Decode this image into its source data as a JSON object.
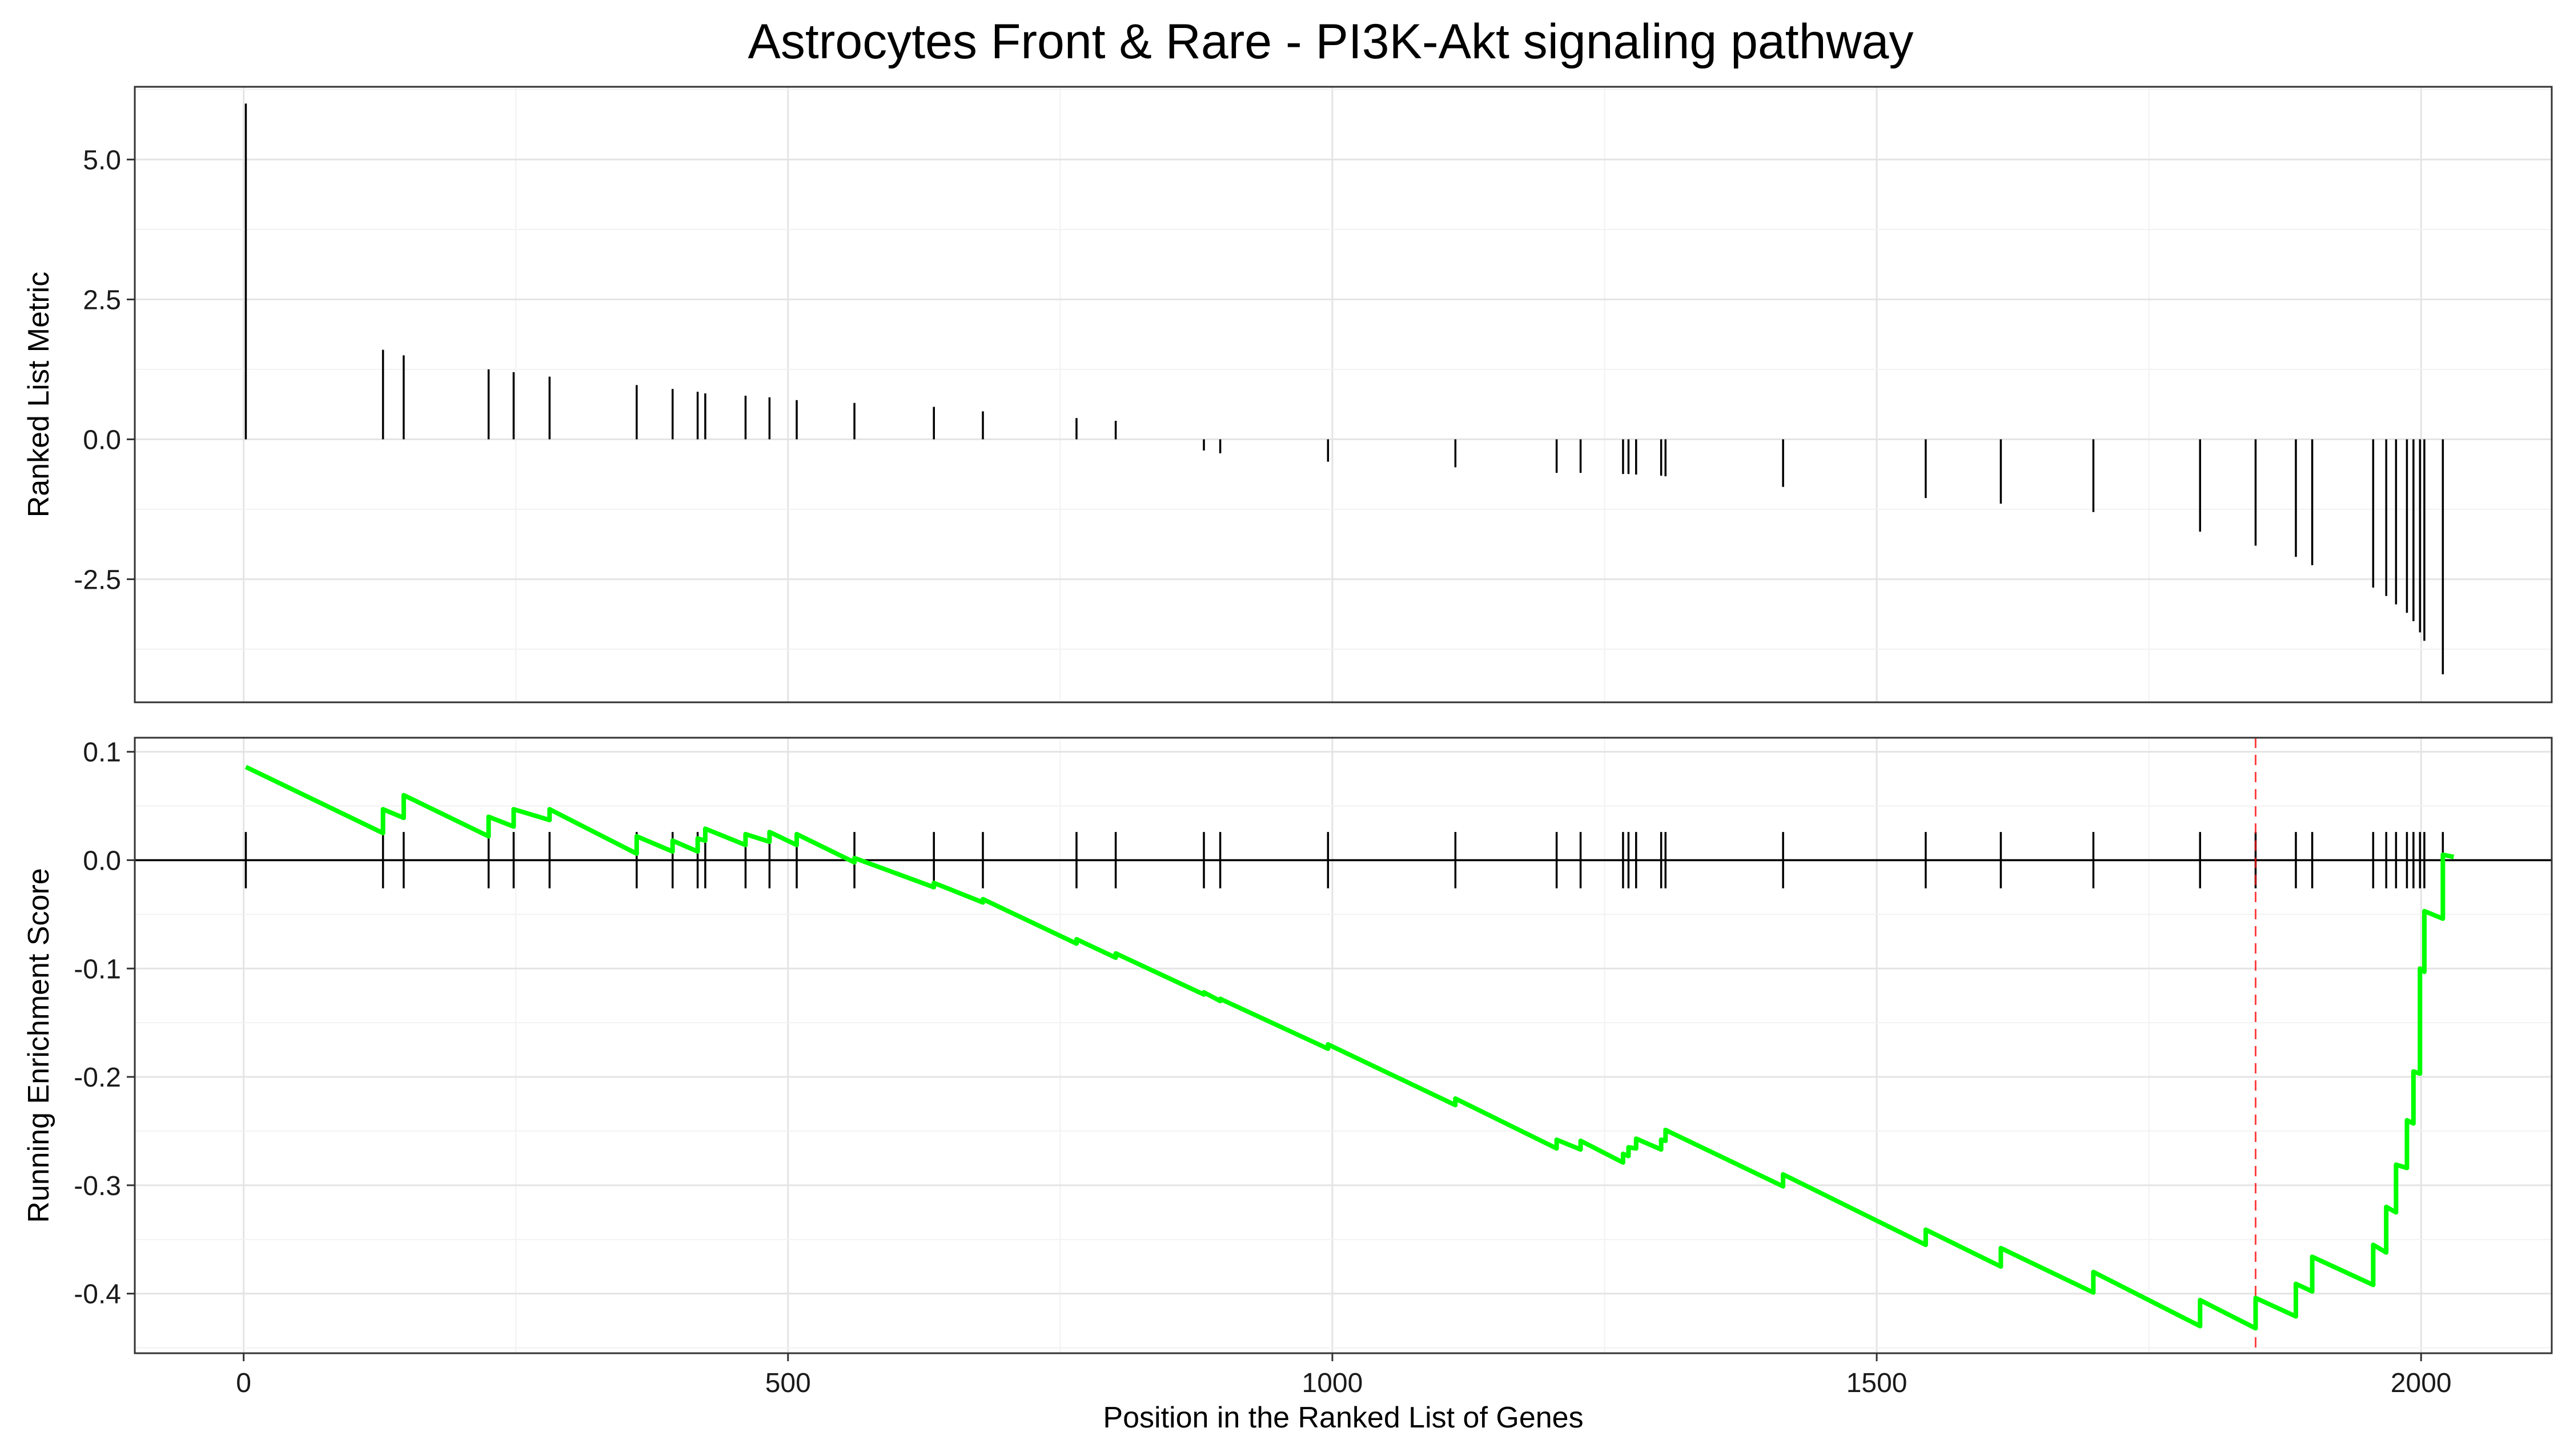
{
  "chart_data": {
    "type": "line",
    "title": "Astrocytes Front & Rare - PI3K-Akt signaling pathway",
    "xlabel": "Position in the Ranked List of Genes",
    "xlim": [
      -100,
      2120
    ],
    "x_ticks": [
      0,
      500,
      1000,
      1500,
      2000
    ],
    "x_tick_labels": [
      "0",
      "500",
      "1000",
      "1500",
      "2000"
    ],
    "panels": [
      {
        "name": "ranked-metric",
        "type": "bar",
        "ylabel": "Ranked List Metric",
        "ylim": [
          -4.7,
          6.3
        ],
        "y_ticks": [
          5.0,
          2.5,
          0.0,
          -2.5
        ],
        "y_tick_labels": [
          "5.0",
          "2.5",
          "0.0",
          "-2.5"
        ],
        "grid": true,
        "bars": [
          {
            "x": 2,
            "value": 6.0
          },
          {
            "x": 128,
            "value": 1.6
          },
          {
            "x": 147,
            "value": 1.5
          },
          {
            "x": 225,
            "value": 1.25
          },
          {
            "x": 248,
            "value": 1.2
          },
          {
            "x": 281,
            "value": 1.12
          },
          {
            "x": 361,
            "value": 0.97
          },
          {
            "x": 394,
            "value": 0.9
          },
          {
            "x": 417,
            "value": 0.85
          },
          {
            "x": 424,
            "value": 0.82
          },
          {
            "x": 461,
            "value": 0.78
          },
          {
            "x": 483,
            "value": 0.75
          },
          {
            "x": 508,
            "value": 0.7
          },
          {
            "x": 561,
            "value": 0.65
          },
          {
            "x": 634,
            "value": 0.58
          },
          {
            "x": 679,
            "value": 0.5
          },
          {
            "x": 765,
            "value": 0.38
          },
          {
            "x": 801,
            "value": 0.33
          },
          {
            "x": 882,
            "value": -0.2
          },
          {
            "x": 897,
            "value": -0.25
          },
          {
            "x": 996,
            "value": -0.4
          },
          {
            "x": 1113,
            "value": -0.5
          },
          {
            "x": 1206,
            "value": -0.6
          },
          {
            "x": 1228,
            "value": -0.6
          },
          {
            "x": 1267,
            "value": -0.62
          },
          {
            "x": 1272,
            "value": -0.62
          },
          {
            "x": 1279,
            "value": -0.63
          },
          {
            "x": 1302,
            "value": -0.65
          },
          {
            "x": 1306,
            "value": -0.66
          },
          {
            "x": 1414,
            "value": -0.85
          },
          {
            "x": 1545,
            "value": -1.05
          },
          {
            "x": 1614,
            "value": -1.15
          },
          {
            "x": 1699,
            "value": -1.3
          },
          {
            "x": 1797,
            "value": -1.65
          },
          {
            "x": 1848,
            "value": -1.9
          },
          {
            "x": 1885,
            "value": -2.1
          },
          {
            "x": 1900,
            "value": -2.25
          },
          {
            "x": 1956,
            "value": -2.65
          },
          {
            "x": 1968,
            "value": -2.8
          },
          {
            "x": 1977,
            "value": -2.95
          },
          {
            "x": 1987,
            "value": -3.1
          },
          {
            "x": 1993,
            "value": -3.25
          },
          {
            "x": 1999,
            "value": -3.45
          },
          {
            "x": 2003,
            "value": -3.6
          },
          {
            "x": 2020,
            "value": -4.2
          }
        ]
      },
      {
        "name": "running-enrichment-score",
        "type": "line",
        "ylabel": "Running Enrichment Score",
        "ylim": [
          -0.455,
          0.113
        ],
        "y_ticks": [
          0.1,
          0.0,
          -0.1,
          -0.2,
          -0.3,
          -0.4
        ],
        "y_tick_labels": [
          "0.1",
          "0.0",
          "-0.1",
          "-0.2",
          "-0.3",
          "-0.4"
        ],
        "grid": true,
        "line_color": "#00ff00",
        "marker_line_color": "#ff0000",
        "max_deviation_x": 1848,
        "hits": [
          2,
          128,
          147,
          225,
          248,
          281,
          361,
          394,
          417,
          424,
          461,
          483,
          508,
          561,
          634,
          679,
          765,
          801,
          882,
          897,
          996,
          1113,
          1206,
          1228,
          1267,
          1272,
          1279,
          1302,
          1306,
          1414,
          1545,
          1614,
          1699,
          1797,
          1848,
          1885,
          1900,
          1956,
          1968,
          1977,
          1987,
          1993,
          1999,
          2003,
          2020
        ],
        "series": [
          {
            "name": "Running Enrichment Score",
            "points": [
              [
                2,
                0.086
              ],
              [
                128,
                0.025
              ],
              [
                128,
                0.047
              ],
              [
                147,
                0.039
              ],
              [
                147,
                0.06
              ],
              [
                225,
                0.022
              ],
              [
                225,
                0.04
              ],
              [
                248,
                0.031
              ],
              [
                248,
                0.047
              ],
              [
                281,
                0.037
              ],
              [
                281,
                0.047
              ],
              [
                361,
                0.006
              ],
              [
                361,
                0.022
              ],
              [
                394,
                0.008
              ],
              [
                394,
                0.018
              ],
              [
                417,
                0.008
              ],
              [
                417,
                0.02
              ],
              [
                424,
                0.018
              ],
              [
                424,
                0.029
              ],
              [
                461,
                0.014
              ],
              [
                461,
                0.024
              ],
              [
                483,
                0.017
              ],
              [
                483,
                0.026
              ],
              [
                508,
                0.014
              ],
              [
                508,
                0.024
              ],
              [
                561,
                -0.002
              ],
              [
                561,
                0.002
              ],
              [
                634,
                -0.025
              ],
              [
                634,
                -0.021
              ],
              [
                679,
                -0.039
              ],
              [
                679,
                -0.036
              ],
              [
                765,
                -0.077
              ],
              [
                765,
                -0.073
              ],
              [
                801,
                -0.09
              ],
              [
                801,
                -0.086
              ],
              [
                882,
                -0.124
              ],
              [
                882,
                -0.122
              ],
              [
                897,
                -0.13
              ],
              [
                897,
                -0.128
              ],
              [
                996,
                -0.174
              ],
              [
                996,
                -0.17
              ],
              [
                1113,
                -0.226
              ],
              [
                1113,
                -0.22
              ],
              [
                1206,
                -0.266
              ],
              [
                1206,
                -0.258
              ],
              [
                1228,
                -0.267
              ],
              [
                1228,
                -0.259
              ],
              [
                1267,
                -0.279
              ],
              [
                1267,
                -0.271
              ],
              [
                1272,
                -0.273
              ],
              [
                1272,
                -0.265
              ],
              [
                1279,
                -0.266
              ],
              [
                1279,
                -0.257
              ],
              [
                1302,
                -0.267
              ],
              [
                1302,
                -0.258
              ],
              [
                1306,
                -0.259
              ],
              [
                1306,
                -0.249
              ],
              [
                1414,
                -0.301
              ],
              [
                1414,
                -0.29
              ],
              [
                1545,
                -0.355
              ],
              [
                1545,
                -0.341
              ],
              [
                1614,
                -0.375
              ],
              [
                1614,
                -0.358
              ],
              [
                1699,
                -0.399
              ],
              [
                1699,
                -0.38
              ],
              [
                1797,
                -0.43
              ],
              [
                1797,
                -0.406
              ],
              [
                1848,
                -0.432
              ],
              [
                1848,
                -0.404
              ],
              [
                1885,
                -0.421
              ],
              [
                1885,
                -0.391
              ],
              [
                1900,
                -0.398
              ],
              [
                1900,
                -0.366
              ],
              [
                1956,
                -0.392
              ],
              [
                1956,
                -0.355
              ],
              [
                1968,
                -0.362
              ],
              [
                1968,
                -0.32
              ],
              [
                1977,
                -0.325
              ],
              [
                1977,
                -0.281
              ],
              [
                1987,
                -0.284
              ],
              [
                1987,
                -0.24
              ],
              [
                1993,
                -0.243
              ],
              [
                1993,
                -0.195
              ],
              [
                1999,
                -0.197
              ],
              [
                1999,
                -0.1
              ],
              [
                2003,
                -0.103
              ],
              [
                2003,
                -0.047
              ],
              [
                2020,
                -0.054
              ],
              [
                2020,
                0.005
              ],
              [
                2030,
                0.003
              ]
            ]
          }
        ]
      }
    ]
  }
}
